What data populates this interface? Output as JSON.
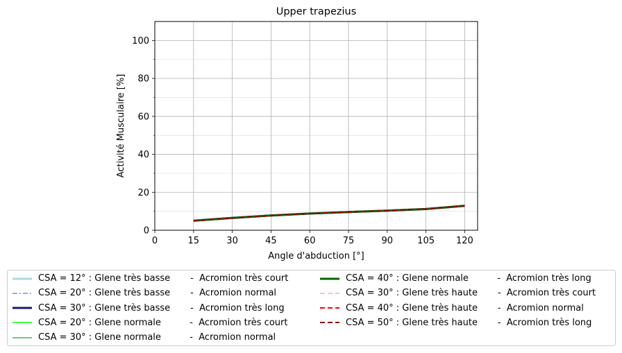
{
  "chart_data": {
    "type": "line",
    "title": "Upper trapezius",
    "xlabel": "Angle d'abduction [°]",
    "ylabel": "Activité Musculaire [%]",
    "xlim": [
      0,
      125
    ],
    "ylim": [
      0,
      110
    ],
    "xticks": [
      0,
      15,
      30,
      45,
      60,
      75,
      90,
      105,
      120
    ],
    "yticks": [
      0,
      20,
      40,
      60,
      80,
      100
    ],
    "grid": true,
    "legend_placement": "bottom",
    "x": [
      15,
      30,
      45,
      60,
      75,
      90,
      105,
      120
    ],
    "series": [
      {
        "name": "CSA = 12° : Glene très basse       -  Acromion très court",
        "color": "#add8e6",
        "style": "solid",
        "width": 3,
        "values": [
          5.0,
          6.5,
          7.8,
          8.8,
          9.6,
          10.3,
          11.2,
          12.9
        ]
      },
      {
        "name": "CSA = 20° : Glene très basse       -  Acromion normal",
        "color": "#6495ed",
        "style": "dashdot",
        "width": 1.5,
        "values": [
          5.0,
          6.5,
          7.8,
          8.8,
          9.6,
          10.3,
          11.2,
          12.9
        ]
      },
      {
        "name": "CSA = 30° : Glene très basse       -  Acromion très long",
        "color": "#191970",
        "style": "solid",
        "width": 3,
        "values": [
          5.0,
          6.5,
          7.8,
          8.8,
          9.6,
          10.3,
          11.2,
          12.9
        ]
      },
      {
        "name": "CSA = 20° : Glene normale          -  Acromion très court",
        "color": "#00ff00",
        "style": "solid",
        "width": 1.5,
        "values": [
          5.0,
          6.5,
          7.8,
          8.8,
          9.6,
          10.3,
          11.2,
          12.9
        ]
      },
      {
        "name": "CSA = 30° : Glene normale          -  Acromion normal",
        "color": "#3cb371",
        "style": "solid",
        "width": 1.5,
        "values": [
          5.0,
          6.5,
          7.8,
          8.8,
          9.6,
          10.3,
          11.2,
          12.9
        ]
      },
      {
        "name": "CSA = 40° : Glene normale          -  Acromion très long",
        "color": "#006400",
        "style": "solid",
        "width": 3,
        "values": [
          5.0,
          6.5,
          7.8,
          8.8,
          9.6,
          10.3,
          11.2,
          12.9
        ]
      },
      {
        "name": "CSA = 30° : Glene très haute       -  Acromion très court",
        "color": "#ffc0cb",
        "style": "dashed",
        "width": 2,
        "values": [
          5.0,
          6.5,
          7.8,
          8.8,
          9.6,
          10.3,
          11.2,
          12.9
        ]
      },
      {
        "name": "CSA = 40° : Glene très haute       -  Acromion normal",
        "color": "#ff0000",
        "style": "dashed",
        "width": 2,
        "values": [
          5.0,
          6.5,
          7.8,
          8.8,
          9.6,
          10.3,
          11.2,
          12.9
        ]
      },
      {
        "name": "CSA = 50° : Glene très haute       -  Acromion très long",
        "color": "#8b0000",
        "style": "dashed",
        "width": 2,
        "values": [
          5.0,
          6.5,
          7.8,
          8.8,
          9.6,
          10.3,
          11.2,
          12.9
        ]
      }
    ]
  }
}
